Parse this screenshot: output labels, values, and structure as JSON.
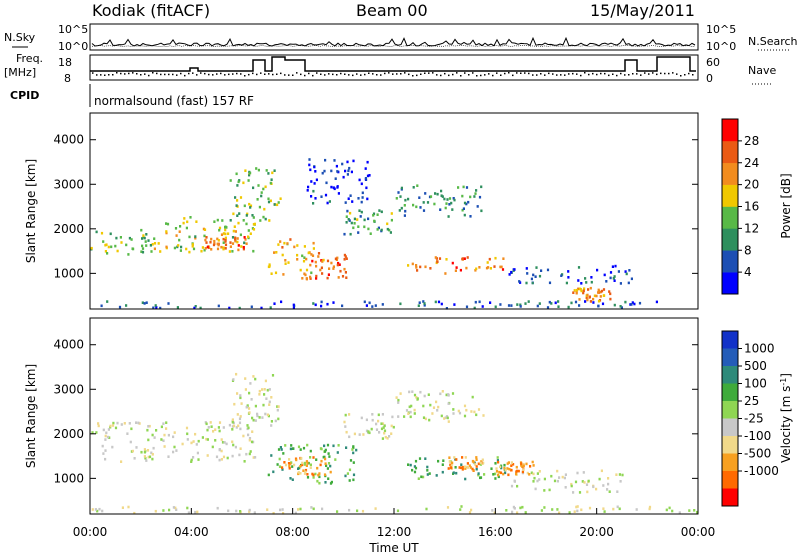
{
  "header": {
    "station": "Kodiak (fitACF)",
    "beam": "Beam 00",
    "date": "15/May/2011"
  },
  "strip_labels": {
    "nsky": "N.Sky",
    "nsearch": "N.Search",
    "freq": "Freq.",
    "freq_unit": "[MHz]",
    "cpid": "CPID",
    "nave": "Nave",
    "cpid_text": "normalsound (fast) 157 RF",
    "noise_ticks": [
      "10^5",
      "10^0"
    ],
    "noise_ticks_right": [
      "10^5",
      "10^0"
    ],
    "freq_ticks": [
      "18",
      "8"
    ],
    "nave_ticks": [
      "60",
      "0"
    ]
  },
  "colors": {
    "power": [
      "#0000ff",
      "#1c4fb4",
      "#2e8f5e",
      "#58b947",
      "#f0c800",
      "#f28c1e",
      "#ea5a14",
      "#ff0000"
    ],
    "velocity": [
      "#ff0000",
      "#ff6a00",
      "#f7a020",
      "#f1d98a",
      "#c8c8c8",
      "#8fd653",
      "#3fab3b",
      "#2e8a7a",
      "#245cb8",
      "#1232c8"
    ]
  },
  "chart_data": [
    {
      "type": "heatmap",
      "name": "power",
      "ylabel": "Slant Range [km]",
      "yticks": [
        "1000",
        "2000",
        "3000",
        "4000"
      ],
      "yticks_values": [
        1000,
        2000,
        3000,
        4000
      ],
      "ylim": [
        200,
        4600
      ],
      "xlim": [
        0,
        24
      ],
      "colorbar_label": "Power [dB]",
      "colorbar_ticks": [
        "4",
        "8",
        "12",
        "16",
        "20",
        "24",
        "28"
      ],
      "colorbar_range": [
        0,
        32
      ],
      "blobs": [
        {
          "t0": 0.0,
          "t1": 2.5,
          "r0": 1400,
          "r1": 2000,
          "v": 14
        },
        {
          "t0": 2.5,
          "t1": 6.5,
          "r0": 1500,
          "r1": 2300,
          "v": 16
        },
        {
          "t0": 4.5,
          "t1": 6.2,
          "r0": 1550,
          "r1": 1850,
          "v": 24
        },
        {
          "t0": 7.0,
          "t1": 8.8,
          "r0": 900,
          "r1": 1800,
          "v": 20
        },
        {
          "t0": 8.5,
          "t1": 10.2,
          "r0": 900,
          "r1": 1500,
          "v": 24
        },
        {
          "t0": 10.0,
          "t1": 12.0,
          "r0": 1900,
          "r1": 2500,
          "v": 12
        },
        {
          "t0": 12.0,
          "t1": 15.5,
          "r0": 2300,
          "r1": 3000,
          "v": 10
        },
        {
          "t0": 12.5,
          "t1": 16.5,
          "r0": 1000,
          "r1": 1400,
          "v": 24
        },
        {
          "t0": 16.5,
          "t1": 21.5,
          "r0": 800,
          "r1": 1200,
          "v": 6
        },
        {
          "t0": 19.0,
          "t1": 20.5,
          "r0": 400,
          "r1": 700,
          "v": 22
        },
        {
          "t0": 5.5,
          "t1": 7.5,
          "r0": 2200,
          "r1": 3400,
          "v": 14
        },
        {
          "t0": 8.5,
          "t1": 11.0,
          "r0": 2600,
          "r1": 3600,
          "v": 4
        },
        {
          "t0": 0.0,
          "t1": 24.0,
          "r0": 200,
          "r1": 400,
          "v": 6
        }
      ]
    },
    {
      "type": "heatmap",
      "name": "velocity",
      "ylabel": "Slant Range [km]",
      "yticks": [
        "1000",
        "2000",
        "3000",
        "4000"
      ],
      "yticks_values": [
        1000,
        2000,
        3000,
        4000
      ],
      "ylim": [
        200,
        4600
      ],
      "xlim": [
        0,
        24
      ],
      "xlabel": "Time UT",
      "xticks": [
        "00:00",
        "04:00",
        "08:00",
        "12:00",
        "16:00",
        "20:00",
        "00:00"
      ],
      "xticks_values": [
        0,
        4,
        8,
        12,
        16,
        20,
        24
      ],
      "colorbar_label": "Velocity [m s",
      "colorbar_label_sup": "-1",
      "colorbar_label_close": "]",
      "colorbar_ticks": [
        "1000",
        "500",
        "100",
        "25",
        "-25",
        "-100",
        "-500",
        "-1000"
      ],
      "blobs": [
        {
          "t0": 0.0,
          "t1": 6.5,
          "r0": 1400,
          "r1": 2300,
          "c": 4
        },
        {
          "t0": 7.0,
          "t1": 10.5,
          "r0": 900,
          "r1": 1800,
          "c": 6
        },
        {
          "t0": 7.5,
          "t1": 9.5,
          "r0": 1100,
          "r1": 1500,
          "c": 2
        },
        {
          "t0": 10.0,
          "t1": 12.0,
          "r0": 1900,
          "r1": 2500,
          "c": 4
        },
        {
          "t0": 12.0,
          "t1": 15.5,
          "r0": 2300,
          "r1": 3000,
          "c": 4
        },
        {
          "t0": 12.5,
          "t1": 16.5,
          "r0": 1000,
          "r1": 1500,
          "c": 6
        },
        {
          "t0": 14.0,
          "t1": 15.5,
          "r0": 1200,
          "r1": 1500,
          "c": 2
        },
        {
          "t0": 16.5,
          "t1": 21.0,
          "r0": 700,
          "r1": 1200,
          "c": 4
        },
        {
          "t0": 5.5,
          "t1": 7.5,
          "r0": 2200,
          "r1": 3400,
          "c": 4
        },
        {
          "t0": 0.0,
          "t1": 24.0,
          "r0": 200,
          "r1": 400,
          "c": 4
        },
        {
          "t0": 16.0,
          "t1": 17.5,
          "r0": 1100,
          "r1": 1400,
          "c": 2
        }
      ]
    }
  ]
}
